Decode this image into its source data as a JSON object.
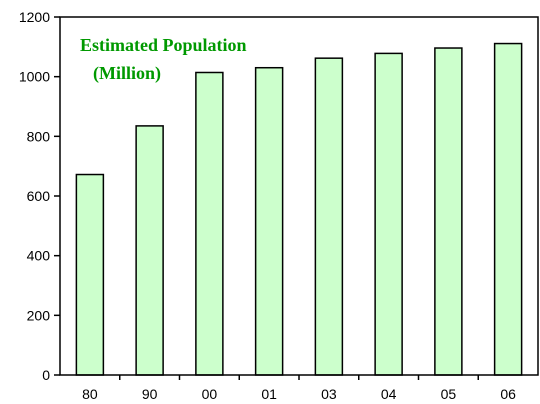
{
  "chart_data": {
    "type": "bar",
    "title_lines": [
      "Estimated Population",
      "(Million)"
    ],
    "categories": [
      "80",
      "90",
      "00",
      "01",
      "03",
      "04",
      "05",
      "06"
    ],
    "values": [
      672,
      835,
      1014,
      1030,
      1062,
      1078,
      1096,
      1111
    ],
    "xlabel": "",
    "ylabel": "",
    "ylim": [
      0,
      1200
    ],
    "yticks": [
      0,
      200,
      400,
      600,
      800,
      1000,
      1200
    ],
    "grid": false,
    "legend": "none",
    "bar_color": "#ccffcc",
    "title_color": "#009900"
  }
}
